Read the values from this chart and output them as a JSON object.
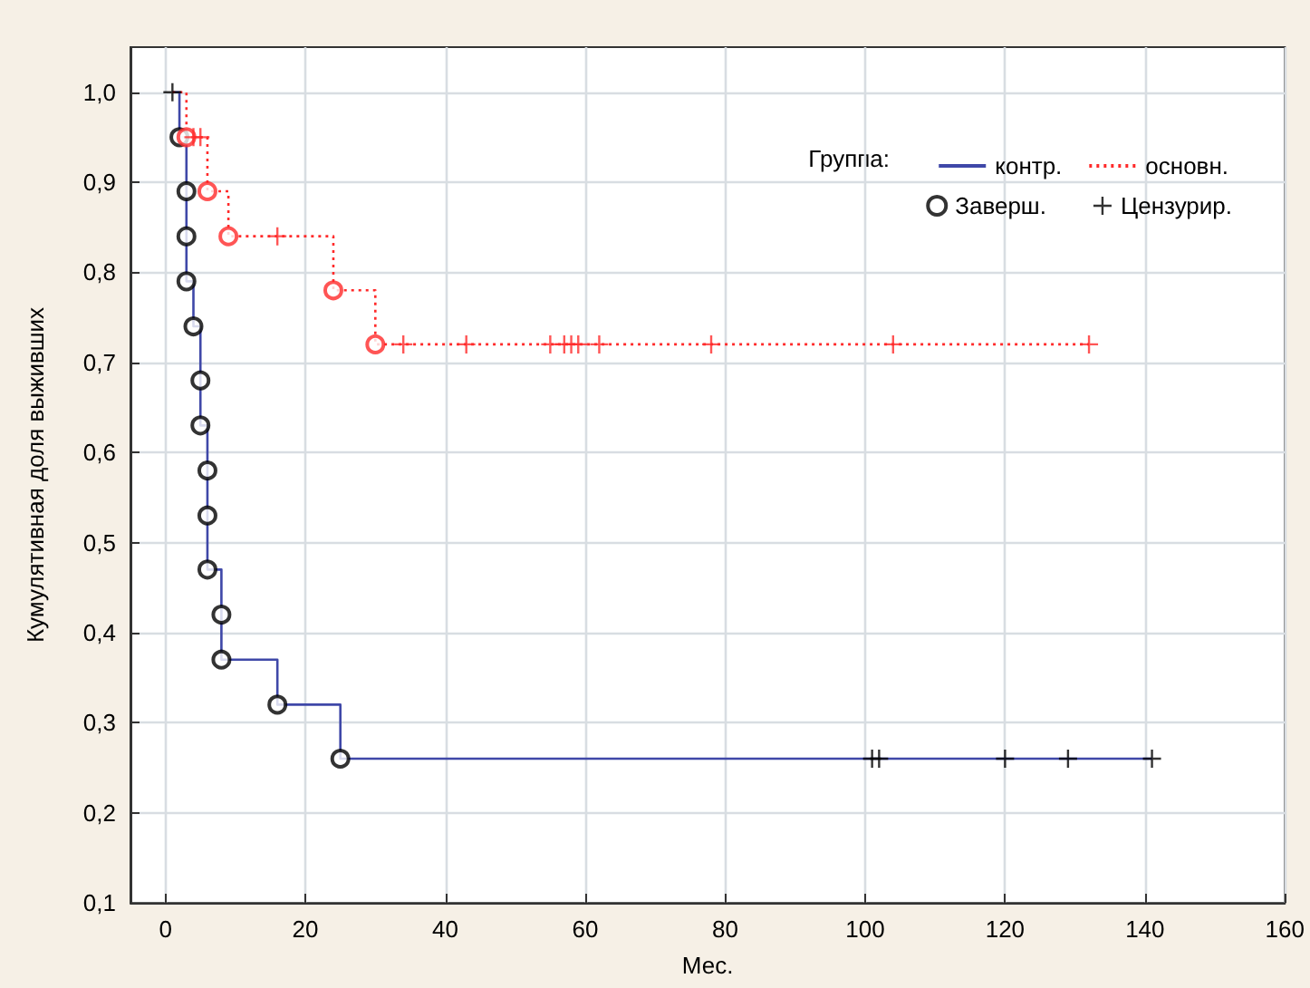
{
  "chart_data": {
    "type": "step",
    "xlabel": "Мес.",
    "ylabel": "Кумулятивная доля выживших",
    "legend_title": "Группа:",
    "xlim": [
      -5,
      160
    ],
    "xticks": [
      0,
      20,
      40,
      60,
      80,
      100,
      120,
      140,
      160
    ],
    "ylim": [
      0.1,
      1.05
    ],
    "yticks": [
      {
        "value": 0.1,
        "label": "0,1"
      },
      {
        "value": 0.2,
        "label": "0,2"
      },
      {
        "value": 0.3,
        "label": "0,3"
      },
      {
        "value": 0.4,
        "label": "0,4"
      },
      {
        "value": 0.5,
        "label": "0,5"
      },
      {
        "value": 0.6,
        "label": "0,6"
      },
      {
        "value": 0.7,
        "label": "0,7"
      },
      {
        "value": 0.8,
        "label": "0,8"
      },
      {
        "value": 0.9,
        "label": "0,9"
      },
      {
        "value": 1,
        "label": "1,0"
      }
    ],
    "grid": true,
    "legend": "top right",
    "series": [
      {
        "name": "контр.",
        "color": "#3f48a8",
        "line_style": "solid",
        "marker": "none",
        "x": [
          1,
          2,
          3,
          4,
          5,
          6,
          8,
          16,
          25,
          141
        ],
        "values": [
          1,
          0.95,
          0.79,
          0.74,
          0.63,
          0.47,
          0.37,
          0.32,
          0.26,
          0.26
        ]
      },
      {
        "name": "основн.",
        "color": "#ff2a2a",
        "line_style": "dotted",
        "marker": "none",
        "x": [
          1,
          3,
          6,
          9,
          24,
          30,
          132
        ],
        "values": [
          1,
          0.95,
          0.89,
          0.84,
          0.78,
          0.72,
          0.72
        ]
      },
      {
        "name": "Заверш.",
        "type": "scatter",
        "color": "#000000",
        "marker": "circle",
        "x": [
          2,
          3,
          3,
          3,
          4,
          5,
          5,
          6,
          6,
          6,
          8,
          8,
          16,
          25
        ],
        "values": [
          0.95,
          0.89,
          0.84,
          0.79,
          0.74,
          0.68,
          0.63,
          0.58,
          0.53,
          0.47,
          0.42,
          0.37,
          0.32,
          0.26
        ]
      },
      {
        "name": "Цензурир.",
        "type": "scatter",
        "color": "#000000",
        "marker": "cross",
        "x": [
          1,
          101,
          102,
          120,
          129,
          141
        ],
        "values": [
          1,
          0.26,
          0.26,
          0.26,
          0.26,
          0.26
        ]
      },
      {
        "type": "scatter",
        "color": "#ff2a2a",
        "marker": "circle",
        "x": [
          3,
          6,
          9,
          24,
          30
        ],
        "values": [
          0.95,
          0.89,
          0.84,
          0.78,
          0.72
        ]
      },
      {
        "type": "scatter",
        "color": "#ff2a2a",
        "marker": "cross",
        "x": [
          4,
          5,
          16,
          34,
          43,
          55,
          57,
          58,
          59,
          62,
          78,
          104,
          132
        ],
        "values": [
          0.95,
          0.95,
          0.84,
          0.72,
          0.72,
          0.72,
          0.72,
          0.72,
          0.72,
          0.72,
          0.72,
          0.72,
          0.72
        ]
      }
    ]
  }
}
